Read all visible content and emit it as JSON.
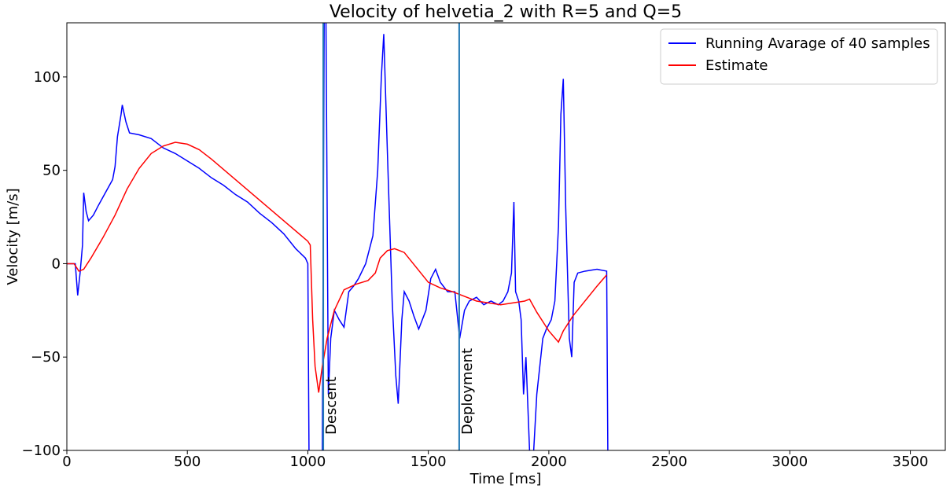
{
  "chart_data": {
    "type": "line",
    "title": "Velocity of helvetia_2 with R=5 and Q=5",
    "x_label": "Time [ms]",
    "y_label": "Velocity [m/s]",
    "xlim": [
      0,
      3645
    ],
    "ylim": [
      -100,
      129
    ],
    "xticks": [
      0,
      500,
      1000,
      1500,
      2000,
      2500,
      3000,
      3500
    ],
    "yticks": [
      {
        "value": -100,
        "label": "−100"
      },
      {
        "value": -50,
        "label": "−50"
      },
      0,
      50,
      100
    ],
    "legend": "upper right",
    "series": [
      {
        "name": "Running Avarage of 40 samples",
        "color": "#0000ff",
        "x": [
          0,
          35,
          45,
          55,
          65,
          70,
          80,
          90,
          110,
          130,
          160,
          190,
          200,
          210,
          225,
          230,
          245,
          260,
          300,
          350,
          400,
          450,
          500,
          550,
          600,
          650,
          700,
          750,
          800,
          850,
          900,
          950,
          990,
          1000,
          1005,
          1060,
          1068,
          1075,
          1085,
          1095,
          1110,
          1130,
          1150,
          1170,
          1190,
          1210,
          1240,
          1270,
          1290,
          1305,
          1315,
          1330,
          1350,
          1365,
          1375,
          1390,
          1400,
          1420,
          1440,
          1460,
          1490,
          1510,
          1530,
          1550,
          1580,
          1610,
          1630,
          1650,
          1670,
          1700,
          1730,
          1760,
          1790,
          1810,
          1830,
          1845,
          1855,
          1862,
          1875,
          1885,
          1895,
          1905,
          1920,
          1935,
          1950,
          1975,
          1990,
          2010,
          2025,
          2040,
          2050,
          2060,
          2070,
          2085,
          2095,
          2105,
          2120,
          2150,
          2200,
          2240,
          2245
        ],
        "values": [
          0,
          0,
          -17,
          -5,
          10,
          38,
          28,
          23,
          26,
          31,
          38,
          45,
          52,
          68,
          80,
          85,
          76,
          70,
          69,
          67,
          62,
          59,
          55,
          51,
          46,
          42,
          37,
          33,
          27,
          22,
          16,
          8,
          3,
          0,
          -105,
          -105,
          135,
          135,
          -70,
          -40,
          -25,
          -30,
          -34,
          -15,
          -12,
          -8,
          0,
          15,
          50,
          100,
          123,
          60,
          -20,
          -60,
          -75,
          -30,
          -15,
          -20,
          -28,
          -35,
          -25,
          -8,
          -3,
          -10,
          -15,
          -15,
          -40,
          -25,
          -20,
          -18,
          -22,
          -20,
          -22,
          -20,
          -15,
          -5,
          33,
          -15,
          -20,
          -30,
          -70,
          -50,
          -100,
          -105,
          -70,
          -40,
          -35,
          -30,
          -20,
          20,
          80,
          99,
          30,
          -40,
          -50,
          -10,
          -5,
          -4,
          -3,
          -4,
          -105
        ]
      },
      {
        "name": "Estimate",
        "color": "#ff0000",
        "x": [
          0,
          30,
          50,
          70,
          100,
          150,
          200,
          250,
          300,
          350,
          400,
          450,
          500,
          550,
          600,
          700,
          800,
          900,
          1000,
          1010,
          1020,
          1030,
          1045,
          1060,
          1080,
          1110,
          1150,
          1200,
          1250,
          1280,
          1300,
          1330,
          1360,
          1400,
          1450,
          1500,
          1550,
          1600,
          1700,
          1800,
          1850,
          1900,
          1920,
          1950,
          2000,
          2040,
          2060,
          2100,
          2150,
          2200,
          2240
        ],
        "values": [
          0,
          0,
          -4,
          -3,
          3,
          14,
          26,
          40,
          51,
          59,
          63,
          65,
          64,
          61,
          56,
          45,
          34,
          23,
          12,
          10,
          -30,
          -55,
          -69,
          -55,
          -40,
          -25,
          -14,
          -11,
          -9,
          -5,
          3,
          7,
          8,
          6,
          -2,
          -10,
          -13,
          -15,
          -20,
          -22,
          -21,
          -20,
          -19,
          -26,
          -36,
          -42,
          -36,
          -28,
          -20,
          -12,
          -6
        ]
      }
    ],
    "vlines": [
      {
        "x": 1064,
        "label": "Descent",
        "color": "#1f77b4"
      },
      {
        "x": 1628,
        "label": "Deployment",
        "color": "#1f77b4"
      }
    ]
  }
}
